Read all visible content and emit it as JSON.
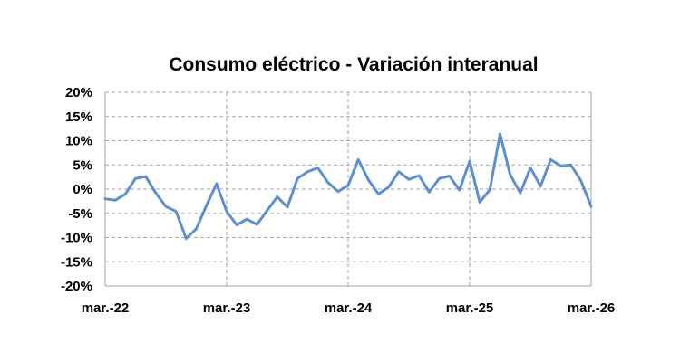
{
  "chart_data": {
    "type": "line",
    "title": "Consumo eléctrico - Variación interanual",
    "xlabel": "",
    "ylabel": "",
    "x_tick_labels": [
      "mar.-22",
      "mar.-23",
      "mar.-24",
      "mar.-25",
      "mar.-26"
    ],
    "y_tick_labels": [
      "20%",
      "15%",
      "10%",
      "5%",
      "0%",
      "-5%",
      "-10%",
      "-15%",
      "-20%"
    ],
    "y_ticks": [
      20,
      15,
      10,
      5,
      0,
      -5,
      -10,
      -15,
      -20
    ],
    "ylim": [
      -20,
      20
    ],
    "y_unit": "%",
    "grid": true,
    "legend": "none",
    "series_color": "#5b8fd6",
    "x": [
      "mar.-22",
      "abr.-22",
      "may.-22",
      "jun.-22",
      "jul.-22",
      "ago.-22",
      "sep.-22",
      "oct.-22",
      "nov.-22",
      "dic.-22",
      "ene.-23",
      "feb.-23",
      "mar.-23",
      "abr.-23",
      "may.-23",
      "jun.-23",
      "jul.-23",
      "ago.-23",
      "sep.-23",
      "oct.-23",
      "nov.-23",
      "dic.-23",
      "ene.-24",
      "feb.-24",
      "mar.-24",
      "abr.-24",
      "may.-24",
      "jun.-24",
      "jul.-24",
      "ago.-24",
      "sep.-24",
      "oct.-24",
      "nov.-24",
      "dic.-24",
      "ene.-25",
      "feb.-25",
      "mar.-25",
      "abr.-25",
      "may.-25",
      "jun.-25",
      "jul.-25",
      "ago.-25",
      "sep.-25",
      "oct.-25",
      "nov.-25",
      "dic.-25",
      "ene.-26",
      "feb.-26",
      "mar.-26"
    ],
    "series": [
      {
        "values": [
          -2.0,
          -2.3,
          -1.0,
          2.2,
          2.6,
          -0.8,
          -3.6,
          -4.6,
          -10.2,
          -8.2,
          -3.4,
          1.1,
          -4.6,
          -7.4,
          -6.2,
          -7.3,
          -4.4,
          -1.6,
          -3.7,
          2.2,
          3.6,
          4.4,
          1.4,
          -0.5,
          0.8,
          6.1,
          1.9,
          -1.0,
          0.4,
          3.6,
          2.0,
          2.8,
          -0.6,
          2.2,
          2.7,
          -0.2,
          5.8,
          -2.7,
          -0.1,
          11.4,
          3.0,
          -0.8,
          4.4,
          0.6,
          6.1,
          4.8,
          5.0,
          1.7,
          -3.6
        ]
      }
    ]
  }
}
